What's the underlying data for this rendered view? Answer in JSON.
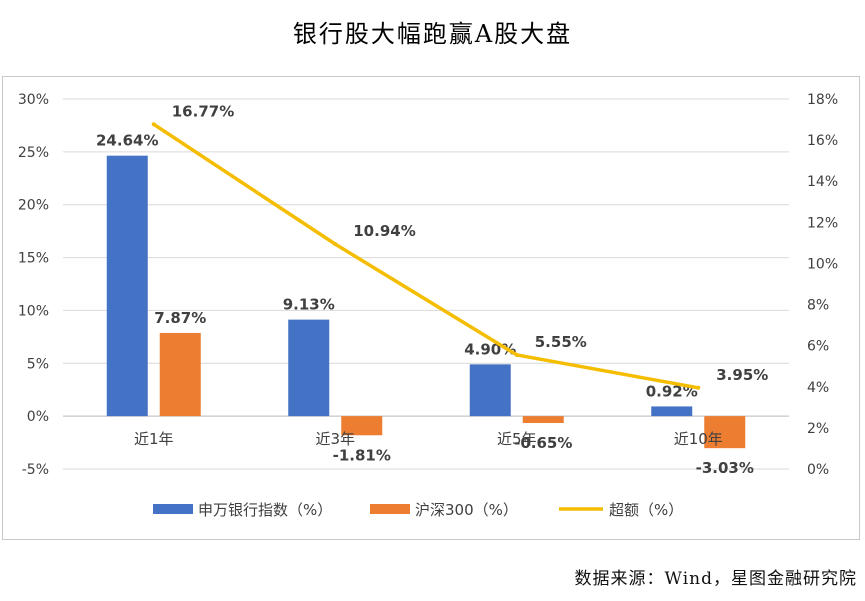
{
  "title": "银行股大幅跑赢A股大盘",
  "source": "数据来源：Wind，星图金融研究院",
  "colors": {
    "series1": "#4472C4",
    "series2": "#ED7D31",
    "series3": "#F5BD00",
    "grid": "#d9d9d9",
    "text": "#404040"
  },
  "chart_data": {
    "type": "bar",
    "categories": [
      "近1年",
      "近3年",
      "近5年",
      "近10年"
    ],
    "series": [
      {
        "name": "申万银行指数（%）",
        "type": "bar",
        "axis": "left",
        "values": [
          24.64,
          9.13,
          4.9,
          0.92
        ],
        "labels": [
          "24.64%",
          "9.13%",
          "4.90%",
          "0.92%"
        ]
      },
      {
        "name": "沪深300（%）",
        "type": "bar",
        "axis": "left",
        "values": [
          7.87,
          -1.81,
          -0.65,
          -3.03
        ],
        "labels": [
          "7.87%",
          "-1.81%",
          "-0.65%",
          "-3.03%"
        ]
      },
      {
        "name": "超额（%）",
        "type": "line",
        "axis": "right",
        "values": [
          16.77,
          10.94,
          5.55,
          3.95
        ],
        "labels": [
          "16.77%",
          "10.94%",
          "5.55%",
          "3.95%"
        ]
      }
    ],
    "y_left": {
      "min": -5,
      "max": 30,
      "step": 5,
      "ticks": [
        "-5%",
        "0%",
        "5%",
        "10%",
        "15%",
        "20%",
        "25%",
        "30%"
      ]
    },
    "y_right": {
      "min": 0,
      "max": 18,
      "step": 2,
      "ticks": [
        "0%",
        "2%",
        "4%",
        "6%",
        "8%",
        "10%",
        "12%",
        "14%",
        "16%",
        "18%"
      ]
    },
    "grid": true,
    "legend": "bottom"
  }
}
